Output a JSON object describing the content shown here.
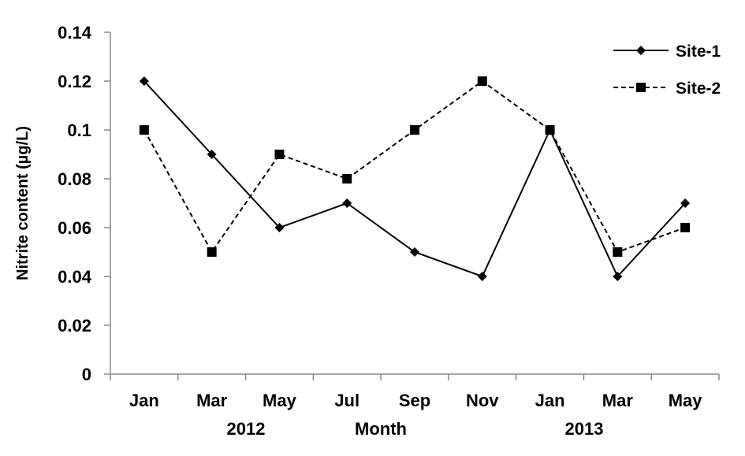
{
  "chart_data": {
    "type": "line",
    "title": "",
    "ylabel": "Nitrite content (µg/L)",
    "xlabel": "Month",
    "ylim": [
      0,
      0.14
    ],
    "yticks": [
      "0",
      "0.02",
      "0.04",
      "0.06",
      "0.08",
      "0.1",
      "0.12",
      "0.14"
    ],
    "categories": [
      "Jan",
      "Mar",
      "May",
      "Jul",
      "Sep",
      "Nov",
      "Jan",
      "Mar",
      "May"
    ],
    "year_labels": [
      "2012",
      "2013"
    ],
    "grid": false,
    "legend_position": "top-right",
    "series": [
      {
        "name": "Site-1",
        "values": [
          0.12,
          0.09,
          0.06,
          0.07,
          0.05,
          0.04,
          0.1,
          0.04,
          0.07
        ],
        "line": "solid",
        "marker": "diamond",
        "color": "#000000"
      },
      {
        "name": "Site-2",
        "values": [
          0.1,
          0.05,
          0.09,
          0.08,
          0.1,
          0.12,
          0.1,
          0.05,
          0.06
        ],
        "line": "dashed",
        "marker": "square",
        "color": "#000000"
      }
    ]
  }
}
